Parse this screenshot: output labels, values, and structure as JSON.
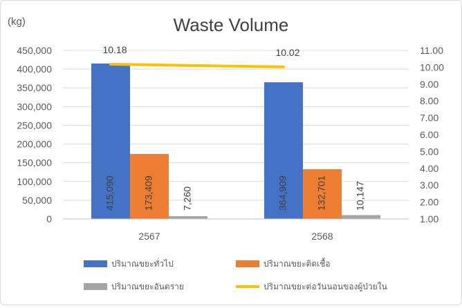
{
  "chart_data": {
    "type": "bar",
    "title": "Waste Volume",
    "y_unit": "(kg)",
    "categories": [
      "2567",
      "2568"
    ],
    "series": [
      {
        "name": "ปริมาณขยะทั่วไป",
        "values": [
          415090,
          364909
        ],
        "labels": [
          "415,090",
          "364,909"
        ],
        "color": "#4472C4",
        "axis": "left"
      },
      {
        "name": "ปริมาณขยะติดเชื้อ",
        "values": [
          173409,
          132701
        ],
        "labels": [
          "173,409",
          "132,701"
        ],
        "color": "#ED7D31",
        "axis": "left"
      },
      {
        "name": "ปริมาณขยะอันตราย",
        "values": [
          7260,
          10147
        ],
        "labels": [
          "7,260",
          "10,147"
        ],
        "color": "#A5A5A5",
        "axis": "left"
      },
      {
        "name": "ปริมาณขยะต่อวันนอนของผู้ป่วยใน",
        "type": "line",
        "values": [
          10.18,
          10.02
        ],
        "labels": [
          "10.18",
          "10.02"
        ],
        "color": "#FFC000",
        "axis": "right"
      }
    ],
    "y_left": {
      "min": 0,
      "max": 450000,
      "ticks": [
        "0",
        "50,000",
        "100,000",
        "150,000",
        "200,000",
        "250,000",
        "300,000",
        "350,000",
        "400,000",
        "450,000"
      ]
    },
    "y_right": {
      "min": 1,
      "max": 11,
      "ticks": [
        "1.00",
        "2.00",
        "3.00",
        "4.00",
        "5.00",
        "6.00",
        "7.00",
        "8.00",
        "9.00",
        "10.00",
        "11.00"
      ]
    },
    "grid": true,
    "legend_position": "bottom"
  }
}
